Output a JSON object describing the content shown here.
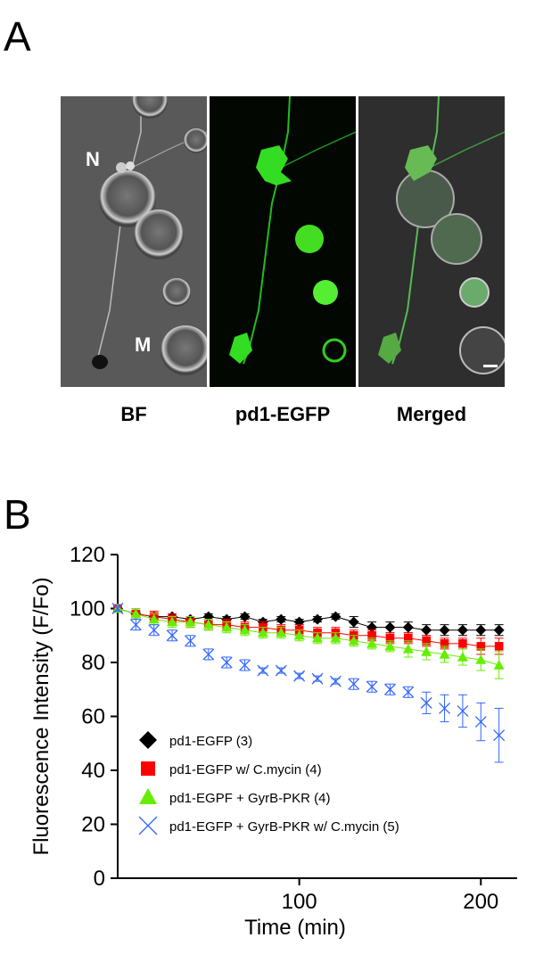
{
  "panel_a": {
    "letter": "A",
    "labels": [
      "BF",
      "pd1-EGFP",
      "Merged"
    ],
    "cell_labels": [
      "N",
      "M"
    ]
  },
  "panel_b": {
    "letter": "B"
  },
  "chart_data": {
    "type": "scatter",
    "xlabel": "Time (min)",
    "ylabel": "Fluorescence Intensity (F/Fo)",
    "xlim": [
      0,
      220
    ],
    "ylim": [
      0,
      120
    ],
    "xticks": [
      100,
      200
    ],
    "yticks": [
      0,
      20,
      40,
      60,
      80,
      100,
      120
    ],
    "legend_position": "lower-left",
    "x": [
      0,
      10,
      20,
      30,
      40,
      50,
      60,
      70,
      80,
      90,
      100,
      110,
      120,
      130,
      140,
      150,
      160,
      170,
      180,
      190,
      200,
      210
    ],
    "series": [
      {
        "name": "pd1-EGFP (3)",
        "marker": "diamond",
        "color": "#000000",
        "values": [
          100,
          98,
          97,
          97,
          96,
          97,
          96,
          97,
          95,
          96,
          95,
          96,
          97,
          95,
          93,
          93,
          93,
          92,
          92,
          92,
          92,
          92
        ],
        "error": [
          1,
          1,
          1,
          1,
          1,
          1,
          1,
          1,
          1,
          1,
          1,
          1,
          1,
          2,
          2,
          2,
          2,
          2,
          2,
          2,
          2,
          2
        ]
      },
      {
        "name": "pd1-EGFP  w/ C.mycin (4)",
        "marker": "square",
        "color": "#ff0000",
        "values": [
          100,
          98,
          97,
          96,
          95,
          94,
          94,
          93,
          93,
          92,
          92,
          91,
          91,
          90,
          90,
          89,
          89,
          88,
          87,
          87,
          86,
          86
        ],
        "error": [
          1,
          2,
          2,
          2,
          2,
          2,
          2,
          2,
          2,
          2,
          2,
          2,
          2,
          2,
          2,
          2,
          2,
          2,
          2,
          2,
          3,
          3
        ]
      },
      {
        "name": "pd1-EGPF + GyrB-PKR (4)",
        "marker": "triangle",
        "color": "#66ee00",
        "values": [
          100,
          98,
          96,
          95,
          95,
          94,
          93,
          92,
          91,
          91,
          90,
          89,
          89,
          88,
          87,
          86,
          85,
          84,
          83,
          82,
          81,
          79
        ],
        "error": [
          1,
          2,
          2,
          2,
          2,
          2,
          2,
          2,
          2,
          2,
          2,
          2,
          2,
          2,
          2,
          2,
          3,
          3,
          3,
          3,
          4,
          5
        ]
      },
      {
        "name": "pd1-EGFP + GyrB-PKR w/ C.mycin (5)",
        "marker": "cross",
        "color": "#3366ff",
        "values": [
          100,
          94,
          92,
          90,
          88,
          83,
          80,
          79,
          77,
          77,
          75,
          74,
          73,
          72,
          71,
          70,
          69,
          65,
          63,
          62,
          58,
          53
        ],
        "error": [
          1,
          2,
          2,
          2,
          2,
          2,
          2,
          2,
          1,
          1,
          1,
          1,
          1,
          2,
          2,
          2,
          2,
          4,
          5,
          6,
          7,
          10
        ]
      }
    ]
  }
}
